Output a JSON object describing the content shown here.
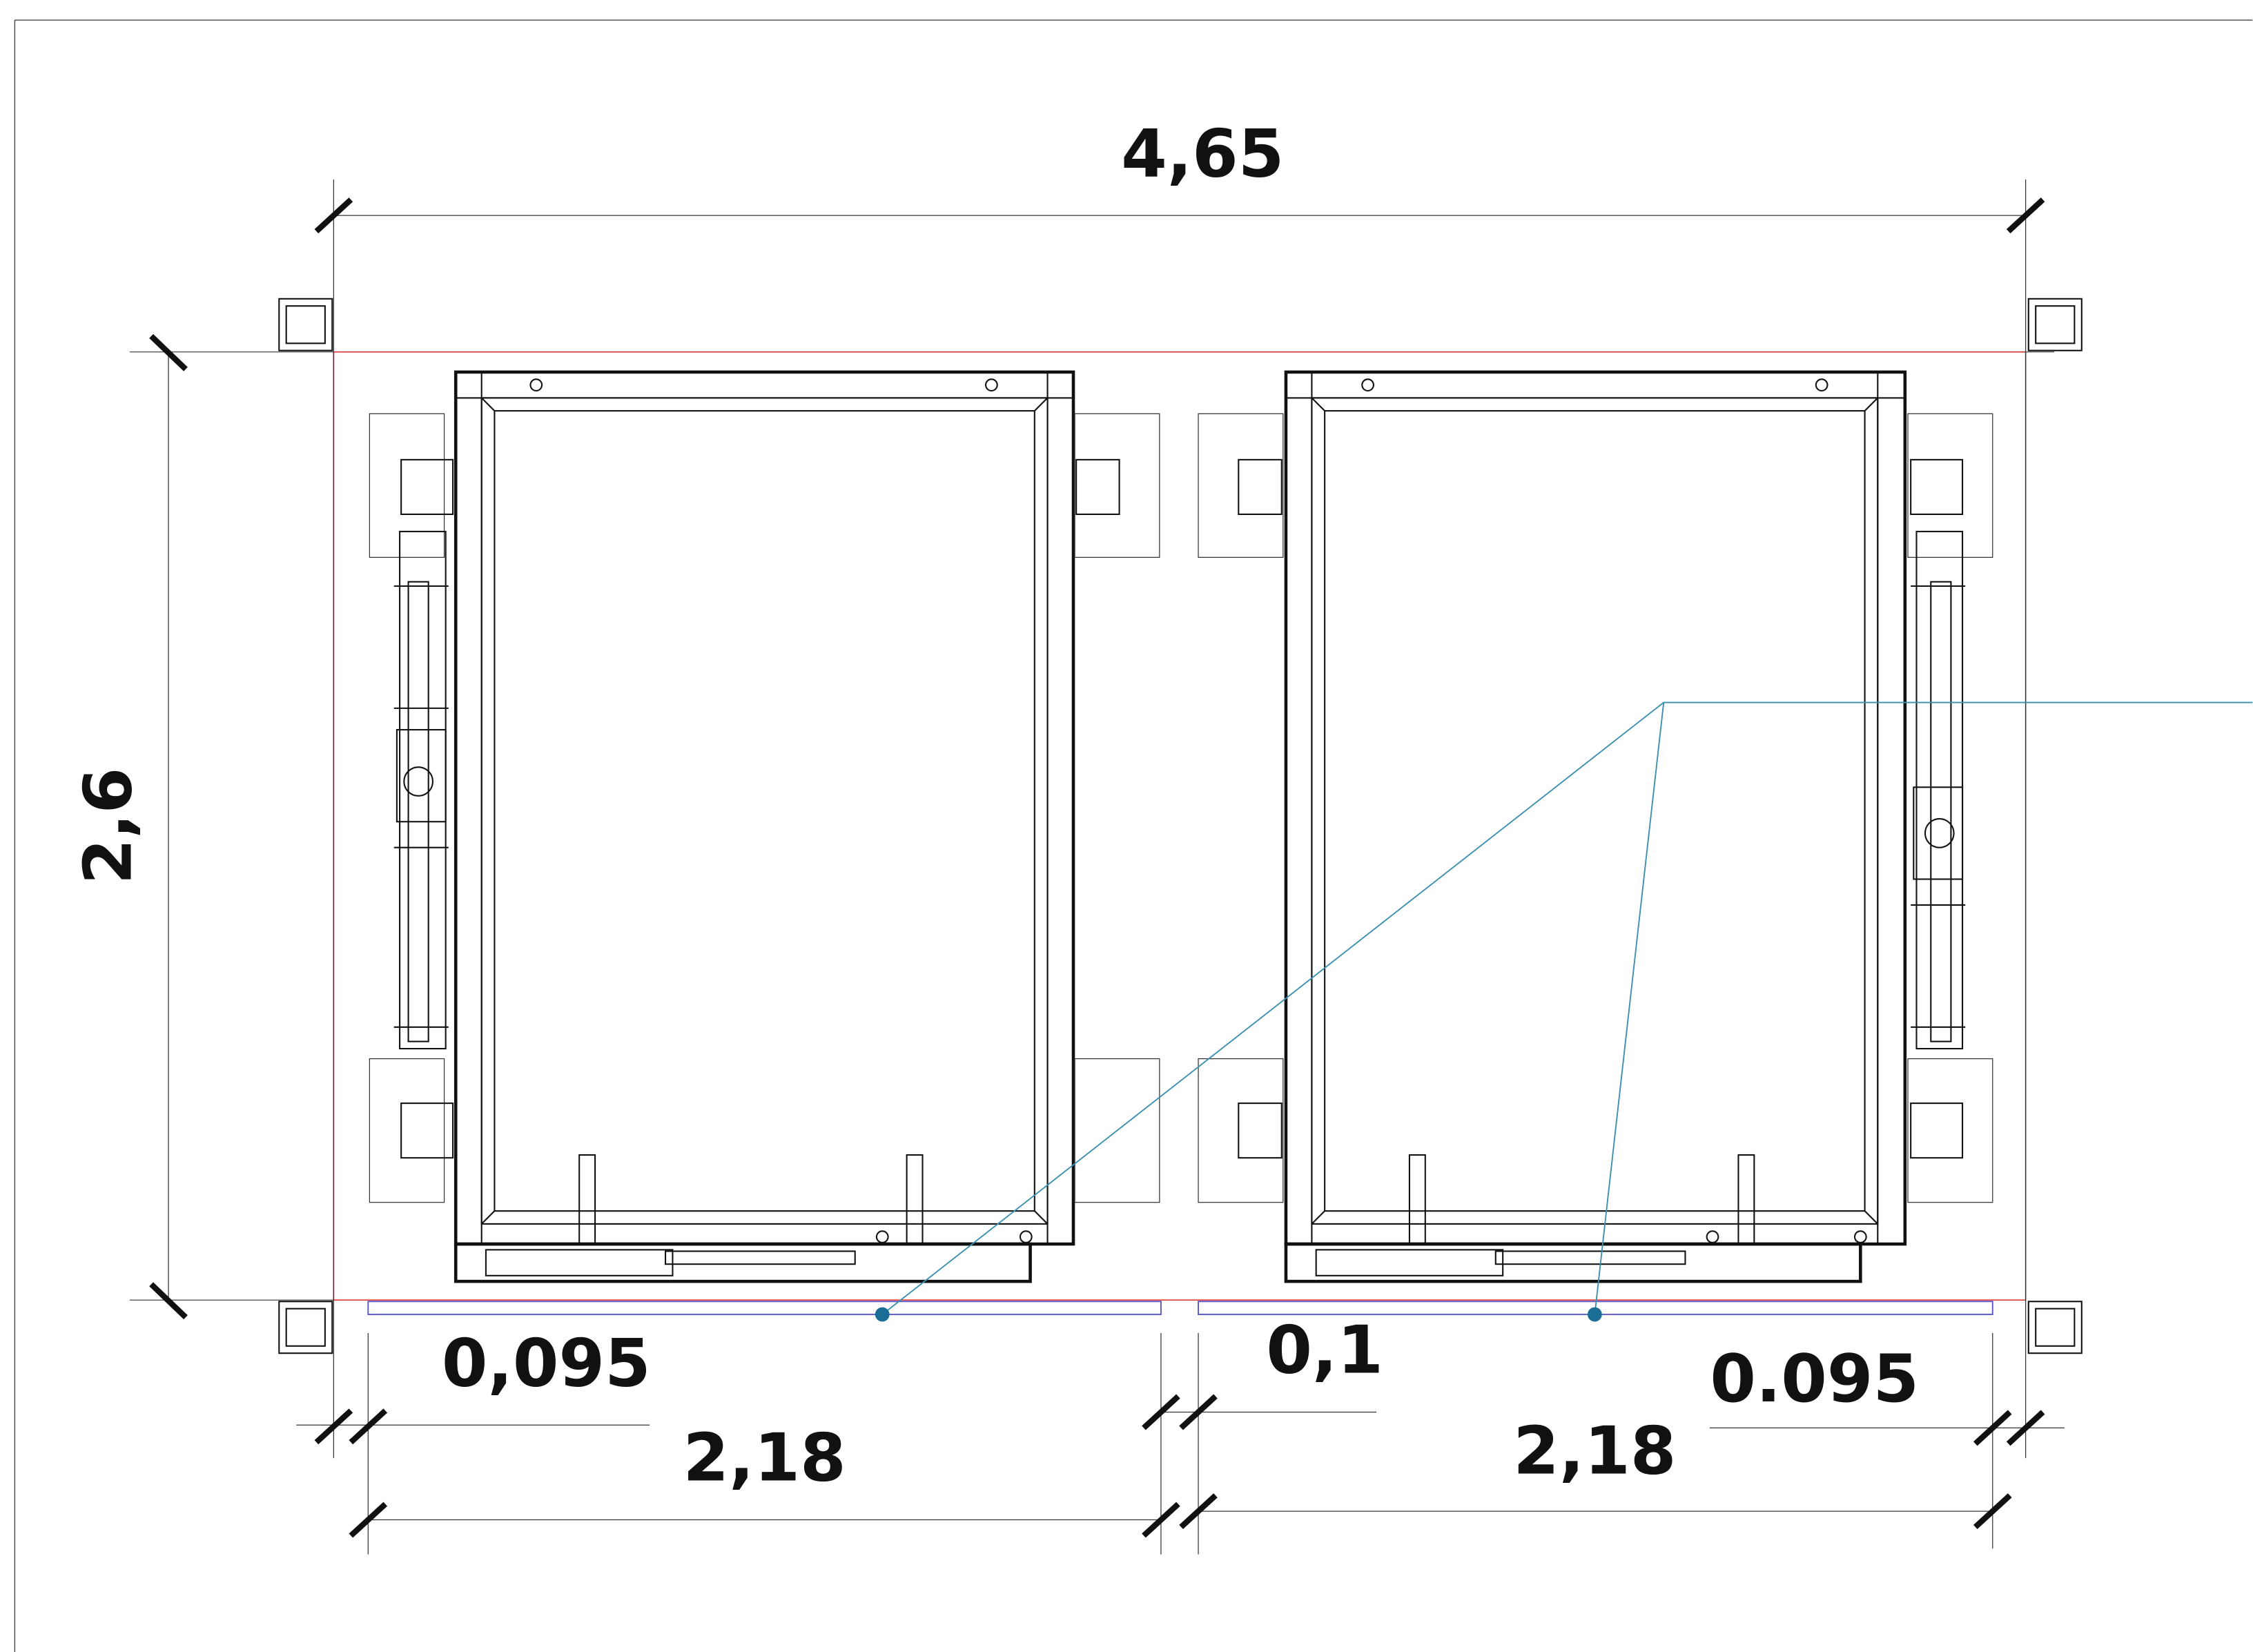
{
  "dimensions": {
    "overall_width": "4,65",
    "overall_height": "2,6",
    "left_margin": "0,095",
    "left_width": "2,18",
    "middle_gap": "0,1",
    "right_margin": "0.095",
    "right_width": "2,18"
  }
}
